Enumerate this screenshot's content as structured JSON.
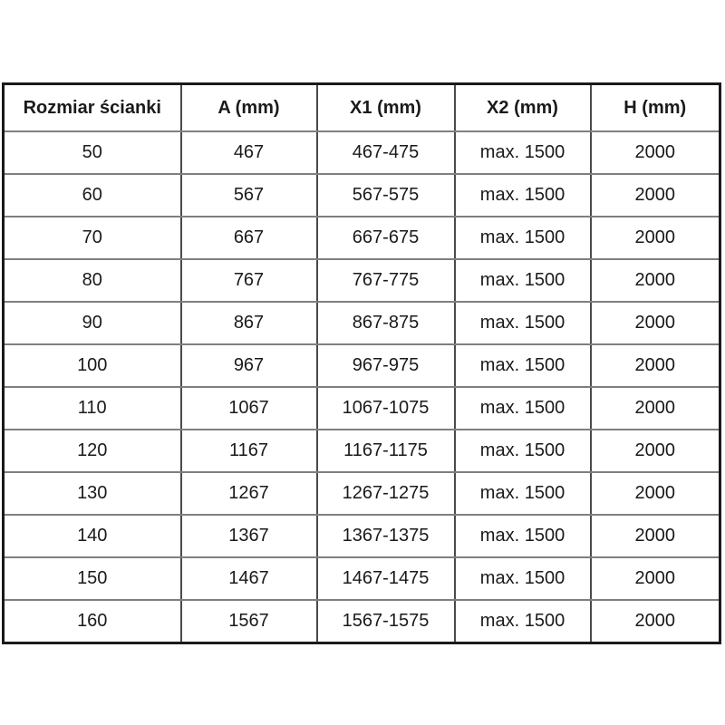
{
  "table": {
    "headers": [
      "Rozmiar ścianki",
      "A (mm)",
      "X1 (mm)",
      "X2 (mm)",
      "H (mm)"
    ],
    "rows": [
      [
        "50",
        "467",
        "467-475",
        "max. 1500",
        "2000"
      ],
      [
        "60",
        "567",
        "567-575",
        "max. 1500",
        "2000"
      ],
      [
        "70",
        "667",
        "667-675",
        "max. 1500",
        "2000"
      ],
      [
        "80",
        "767",
        "767-775",
        "max. 1500",
        "2000"
      ],
      [
        "90",
        "867",
        "867-875",
        "max. 1500",
        "2000"
      ],
      [
        "100",
        "967",
        "967-975",
        "max. 1500",
        "2000"
      ],
      [
        "110",
        "1067",
        "1067-1075",
        "max. 1500",
        "2000"
      ],
      [
        "120",
        "1167",
        "1167-1175",
        "max. 1500",
        "2000"
      ],
      [
        "130",
        "1267",
        "1267-1275",
        "max. 1500",
        "2000"
      ],
      [
        "140",
        "1367",
        "1367-1375",
        "max. 1500",
        "2000"
      ],
      [
        "150",
        "1467",
        "1467-1475",
        "max. 1500",
        "2000"
      ],
      [
        "160",
        "1567",
        "1567-1575",
        "max. 1500",
        "2000"
      ]
    ]
  },
  "colors": {
    "background": "#ffffff",
    "text": "#1a1a1a",
    "border_outer": "#1a1a1a",
    "border_inner_vertical": "#4a4a4a",
    "border_inner_horizontal": "#7f7f7f"
  }
}
